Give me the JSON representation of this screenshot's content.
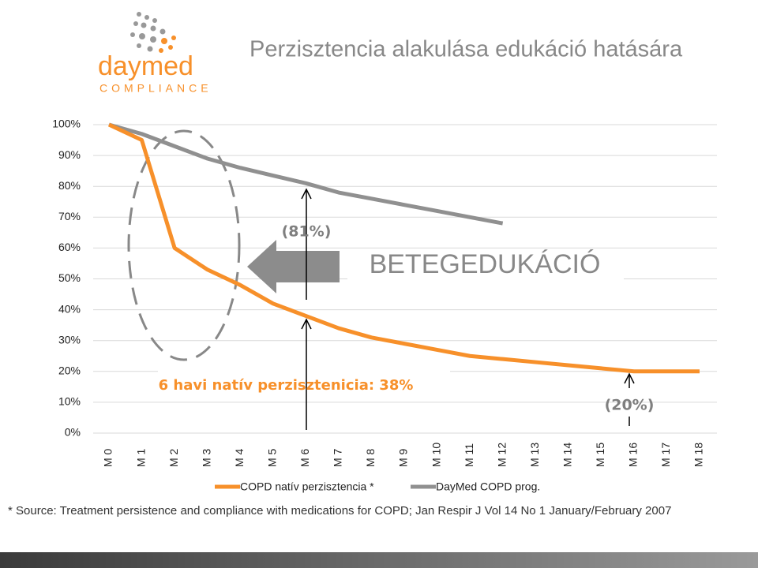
{
  "logo": {
    "name": "daymed",
    "tagline": "COMPLIANCE"
  },
  "footnote": "* Source: Treatment persistence and compliance with medications for COPD; Jan Respir J Vol 14 No 1 January/February 2007",
  "chart_data": {
    "type": "line",
    "title": "Perzisztencia alakulása edukáció hatására",
    "categories": [
      "M 0",
      "M 1",
      "M 2",
      "M 3",
      "M 4",
      "M 5",
      "M 6",
      "M 7",
      "M 8",
      "M 9",
      "M 10",
      "M 11",
      "M 12",
      "M 13",
      "M 14",
      "M 15",
      "M 16",
      "M 17",
      "M 18"
    ],
    "series": [
      {
        "name": "COPD natív perzisztencia *",
        "color": "#f7902a",
        "values": [
          100,
          95,
          60,
          53,
          48,
          42,
          38,
          34,
          31,
          29,
          27,
          25,
          24,
          23,
          22,
          21,
          20,
          20,
          20
        ]
      },
      {
        "name": "DayMed COPD prog.",
        "color": "#909090",
        "values": [
          100,
          97,
          93,
          89,
          86,
          83.5,
          81,
          78,
          76,
          74,
          72,
          70,
          68,
          null,
          null,
          null,
          null,
          null,
          null
        ]
      }
    ],
    "ylim": [
      0,
      100
    ],
    "yticks": [
      {
        "value": 0,
        "label": "0%"
      },
      {
        "value": 10,
        "label": "10%"
      },
      {
        "value": 20,
        "label": "20%"
      },
      {
        "value": 30,
        "label": "30%"
      },
      {
        "value": 40,
        "label": "40%"
      },
      {
        "value": 50,
        "label": "50%"
      },
      {
        "value": 60,
        "label": "60%"
      },
      {
        "value": 70,
        "label": "70%"
      },
      {
        "value": 80,
        "label": "80%"
      },
      {
        "value": 90,
        "label": "90%"
      },
      {
        "value": 100,
        "label": "100%"
      }
    ],
    "grid": true,
    "legend": "bottom",
    "annotations": [
      "(81%)",
      "BETEGEDUKÁCIÓ",
      "6 havi natív perzisztenicia: 38%",
      "(20%)"
    ]
  }
}
